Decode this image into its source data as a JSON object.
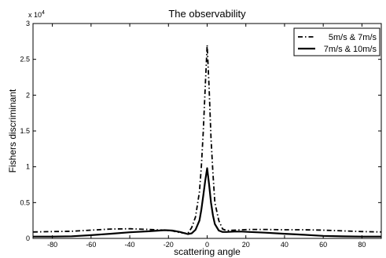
{
  "chart_data": {
    "type": "line",
    "title": "The observability",
    "xlabel": "scattering angle",
    "ylabel": "Fishers discriminant",
    "y_exponent_label": "x 10",
    "y_exponent_power": "4",
    "xlim": [
      -90,
      90
    ],
    "ylim": [
      0,
      30000
    ],
    "x_ticks": [
      -80,
      -60,
      -40,
      -20,
      0,
      20,
      40,
      60,
      80
    ],
    "y_ticks": [
      0,
      5000,
      10000,
      15000,
      20000,
      25000,
      30000
    ],
    "y_tick_labels": [
      "0",
      "0.5",
      "1",
      "1.5",
      "2",
      "2.5",
      "3"
    ],
    "grid": false,
    "legend_position": "top-right",
    "series": [
      {
        "name": "5m/s & 7m/s",
        "style": "dash-dot",
        "color": "#000000",
        "x": [
          -90,
          -80,
          -70,
          -60,
          -50,
          -40,
          -30,
          -22,
          -18,
          -14,
          -10,
          -8,
          -6,
          -4,
          -3,
          -2,
          -1,
          0,
          1,
          2,
          3,
          4,
          6,
          8,
          10,
          14,
          18,
          22,
          30,
          40,
          50,
          60,
          70,
          80,
          90
        ],
        "y": [
          900,
          950,
          1000,
          1150,
          1300,
          1350,
          1250,
          1150,
          1050,
          800,
          700,
          1500,
          3000,
          6500,
          10000,
          15000,
          21000,
          27000,
          21000,
          14000,
          9000,
          5000,
          2500,
          1300,
          1100,
          1150,
          1200,
          1250,
          1250,
          1200,
          1200,
          1150,
          1050,
          950,
          900
        ]
      },
      {
        "name": "7m/s & 10m/s",
        "style": "solid",
        "color": "#000000",
        "x": [
          -90,
          -80,
          -70,
          -60,
          -50,
          -40,
          -30,
          -22,
          -18,
          -14,
          -10,
          -8,
          -6,
          -4,
          -3,
          -2,
          -1,
          0,
          1,
          2,
          3,
          4,
          6,
          8,
          10,
          14,
          18,
          22,
          30,
          40,
          50,
          60,
          70,
          80,
          90
        ],
        "y": [
          250,
          250,
          300,
          450,
          650,
          850,
          1000,
          1150,
          1100,
          900,
          600,
          700,
          1200,
          2500,
          4000,
          6000,
          8000,
          9800,
          7500,
          5000,
          3200,
          2000,
          1100,
          900,
          900,
          950,
          950,
          900,
          800,
          650,
          500,
          350,
          280,
          250,
          250
        ]
      }
    ]
  }
}
